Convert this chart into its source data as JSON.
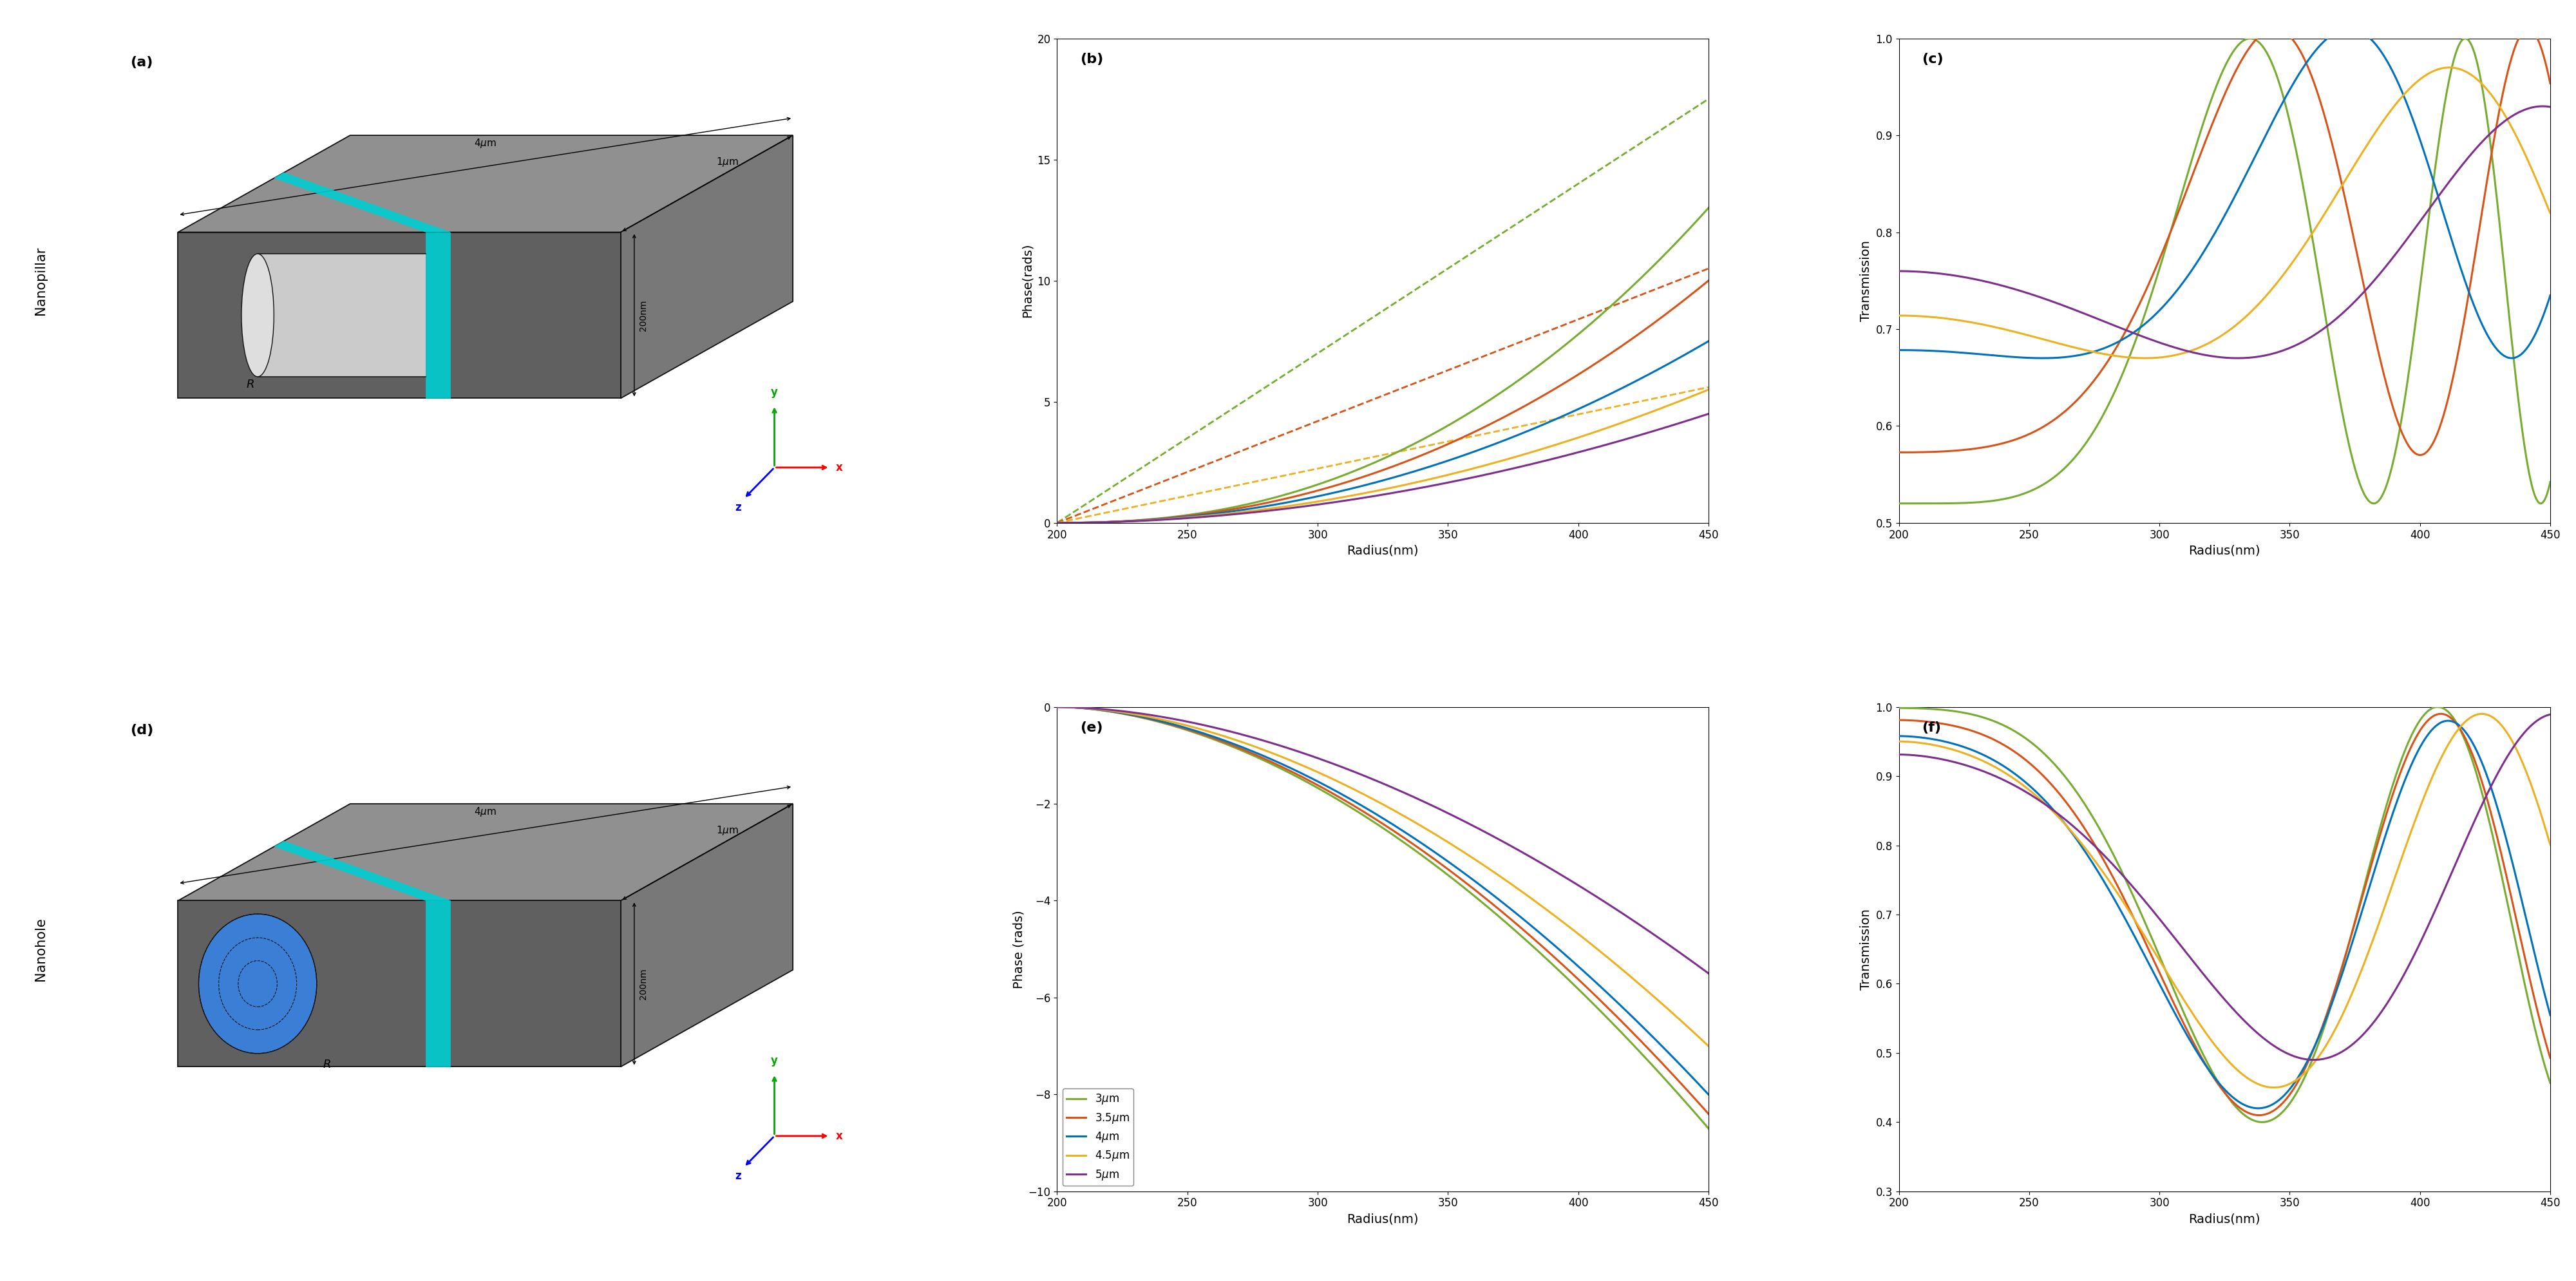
{
  "colors": {
    "3um": "#77AC30",
    "3.5um": "#D95319",
    "4um": "#0072BD",
    "4.5um": "#EDB120",
    "5um": "#7E2F8E"
  },
  "legend_labels": [
    "3$\\mu$m",
    "3.5$\\mu$m",
    "4$\\mu$m",
    "4.5$\\mu$m",
    "5$\\mu$m"
  ],
  "x_range": [
    200,
    450
  ],
  "b_ylim": [
    0,
    20
  ],
  "e_ylim": [
    -10,
    0
  ],
  "c_ylim": [
    0.5,
    1.0
  ],
  "f_ylim": [
    0.3,
    1.0
  ],
  "b_yticks": [
    0,
    5,
    10,
    15,
    20
  ],
  "e_yticks": [
    0,
    -2,
    -4,
    -6,
    -8,
    -10
  ],
  "xticks": [
    200,
    250,
    300,
    350,
    400,
    450
  ]
}
